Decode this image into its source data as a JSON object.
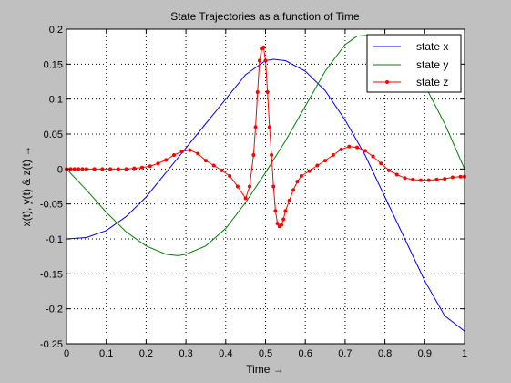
{
  "colors": {
    "figure_bg": "#c0c0c0",
    "axes_bg": "#ffffff",
    "grid": "#000000",
    "x": "#0000ff",
    "y": "#008000",
    "z": "#ff0000"
  },
  "chart_data": {
    "type": "line",
    "title": "State Trajectories as a function of Time",
    "xlabel": "Time →",
    "ylabel": "x(t), y(t) & z(t) →",
    "xlim": [
      0,
      1
    ],
    "ylim": [
      -0.25,
      0.2
    ],
    "grid": true,
    "legend_position": "top-right",
    "xticks": [
      0,
      0.1,
      0.2,
      0.3,
      0.4,
      0.5,
      0.6,
      0.7,
      0.8,
      0.9,
      1
    ],
    "yticks": [
      -0.25,
      -0.2,
      -0.15,
      -0.1,
      -0.05,
      0,
      0.05,
      0.1,
      0.15,
      0.2
    ],
    "xtick_labels": [
      "0",
      "0.1",
      "0.2",
      "0.3",
      "0.4",
      "0.5",
      "0.6",
      "0.7",
      "0.8",
      "0.9",
      "1"
    ],
    "ytick_labels": [
      "-0.25",
      "-0.2",
      "-0.15",
      "-0.1",
      "-0.05",
      "0",
      "0.05",
      "0.1",
      "0.15",
      "0.2"
    ],
    "series": [
      {
        "name": "state x",
        "color": "#0000ff",
        "marker": "none",
        "x": [
          0,
          0.05,
          0.1,
          0.15,
          0.2,
          0.25,
          0.3,
          0.35,
          0.4,
          0.45,
          0.5,
          0.52,
          0.55,
          0.6,
          0.65,
          0.7,
          0.75,
          0.8,
          0.85,
          0.9,
          0.95,
          1.0
        ],
        "y": [
          -0.1,
          -0.098,
          -0.088,
          -0.068,
          -0.04,
          -0.005,
          0.03,
          0.065,
          0.1,
          0.135,
          0.155,
          0.157,
          0.155,
          0.14,
          0.112,
          0.07,
          0.02,
          -0.04,
          -0.1,
          -0.16,
          -0.21,
          -0.232
        ]
      },
      {
        "name": "state y",
        "color": "#008000",
        "marker": "none",
        "x": [
          0,
          0.05,
          0.1,
          0.15,
          0.2,
          0.25,
          0.28,
          0.3,
          0.35,
          0.4,
          0.45,
          0.5,
          0.55,
          0.6,
          0.65,
          0.7,
          0.73,
          0.75,
          0.8,
          0.85,
          0.9,
          0.95,
          1.0
        ],
        "y": [
          0,
          -0.03,
          -0.062,
          -0.09,
          -0.11,
          -0.122,
          -0.124,
          -0.122,
          -0.11,
          -0.085,
          -0.048,
          -0.005,
          0.04,
          0.09,
          0.14,
          0.178,
          0.19,
          0.191,
          0.19,
          0.165,
          0.12,
          0.065,
          0.0
        ]
      },
      {
        "name": "state z",
        "color": "#ff0000",
        "marker": "dot",
        "x": [
          0,
          0.01,
          0.02,
          0.03,
          0.04,
          0.05,
          0.07,
          0.09,
          0.11,
          0.13,
          0.15,
          0.17,
          0.19,
          0.21,
          0.23,
          0.25,
          0.27,
          0.29,
          0.31,
          0.33,
          0.35,
          0.37,
          0.39,
          0.41,
          0.43,
          0.45,
          0.46,
          0.47,
          0.475,
          0.48,
          0.485,
          0.49,
          0.495,
          0.5,
          0.505,
          0.51,
          0.515,
          0.52,
          0.525,
          0.53,
          0.535,
          0.54,
          0.545,
          0.55,
          0.56,
          0.57,
          0.58,
          0.59,
          0.61,
          0.63,
          0.65,
          0.67,
          0.69,
          0.71,
          0.73,
          0.75,
          0.77,
          0.79,
          0.81,
          0.83,
          0.85,
          0.87,
          0.89,
          0.91,
          0.93,
          0.95,
          0.97,
          0.99,
          1.0
        ],
        "y": [
          0,
          0,
          0,
          0,
          0,
          0,
          0,
          0,
          0,
          0,
          0,
          0.001,
          0.002,
          0.004,
          0.008,
          0.013,
          0.02,
          0.025,
          0.027,
          0.022,
          0.012,
          0.005,
          -0.002,
          -0.01,
          -0.025,
          -0.042,
          -0.025,
          0.02,
          0.06,
          0.11,
          0.155,
          0.172,
          0.174,
          0.155,
          0.11,
          0.06,
          0.02,
          -0.025,
          -0.06,
          -0.078,
          -0.082,
          -0.08,
          -0.072,
          -0.06,
          -0.045,
          -0.03,
          -0.018,
          -0.01,
          -0.003,
          0.005,
          0.012,
          0.02,
          0.028,
          0.032,
          0.031,
          0.026,
          0.018,
          0.008,
          -0.002,
          -0.008,
          -0.013,
          -0.015,
          -0.016,
          -0.016,
          -0.015,
          -0.014,
          -0.012,
          -0.011,
          -0.011
        ]
      }
    ]
  }
}
